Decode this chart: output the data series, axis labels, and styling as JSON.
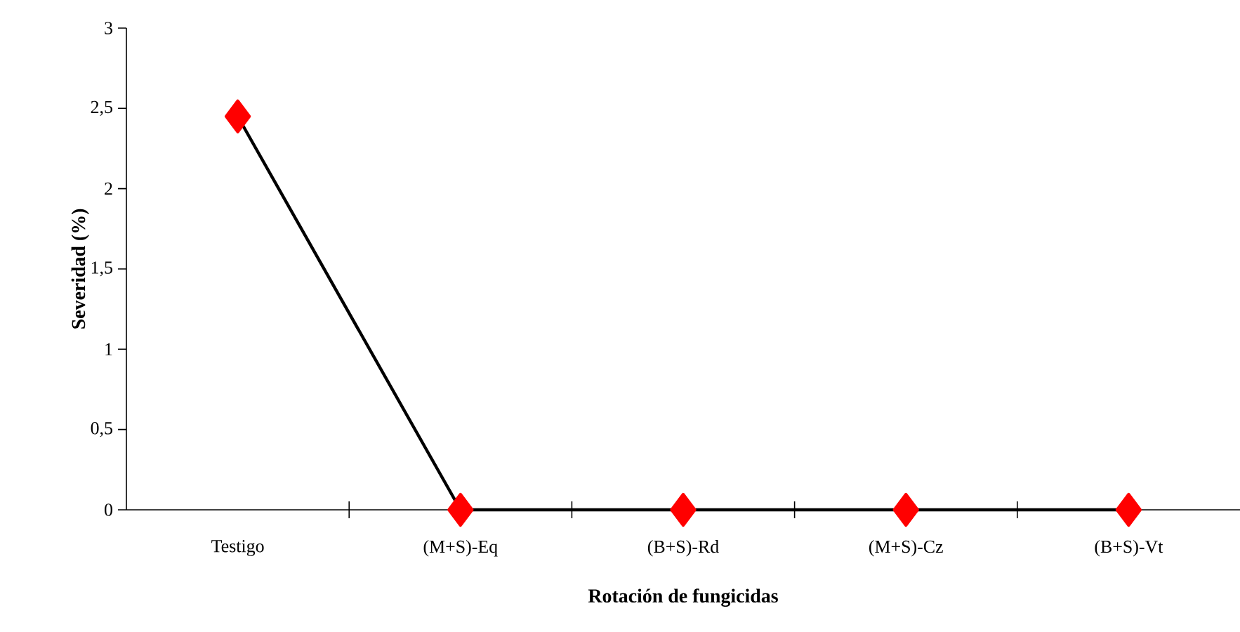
{
  "chart_data": {
    "type": "line",
    "xlabel": "Rotación de fungicidas",
    "ylabel": "Severidad (%)",
    "categories": [
      "Testigo",
      "(M+S)-Eq",
      "(B+S)-Rd",
      "(M+S)-Cz",
      "(B+S)-Vt"
    ],
    "series": [
      {
        "color": "#000000",
        "colors": [
          "#ff0000",
          "#ff0000",
          "#ff0000",
          "#ff0000",
          "#ff0000"
        ],
        "values": [
          2.45,
          0,
          0,
          0,
          0
        ]
      }
    ],
    "marker": "diamond",
    "line_style": "solid",
    "grid": false,
    "ylim": [
      0,
      3
    ],
    "yticks": [
      0,
      {
        "value": 0.5,
        "label": "0,5"
      },
      1,
      {
        "value": 1.5,
        "label": "1,5"
      },
      2,
      {
        "value": 2.5,
        "label": "2,5"
      },
      3
    ]
  }
}
